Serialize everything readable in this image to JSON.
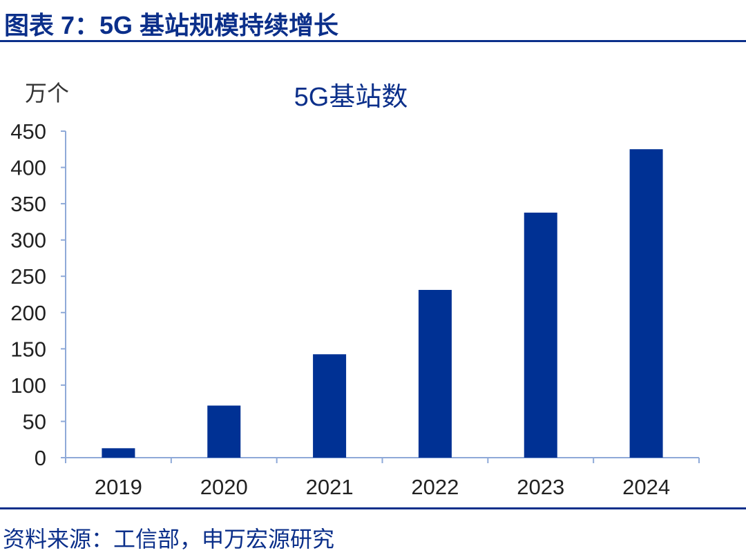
{
  "figure_title": "图表 7：5G 基站规模持续增长",
  "source": "资料来源：工信部，申万宏源研究",
  "colors": {
    "bar": "#003194",
    "title": "#0b2f8a",
    "axis": "#8ea9d8"
  },
  "chart_data": {
    "type": "bar",
    "title": "5G基站数",
    "ylabel": "万个",
    "xlabel": "",
    "categories": [
      "2019",
      "2020",
      "2021",
      "2022",
      "2023",
      "2024"
    ],
    "values": [
      13,
      71.8,
      142.5,
      231.2,
      337.7,
      425.1
    ],
    "ylim": [
      0,
      450
    ],
    "yticks": [
      0,
      50,
      100,
      150,
      200,
      250,
      300,
      350,
      400,
      450
    ],
    "grid": false,
    "legend": "none"
  }
}
